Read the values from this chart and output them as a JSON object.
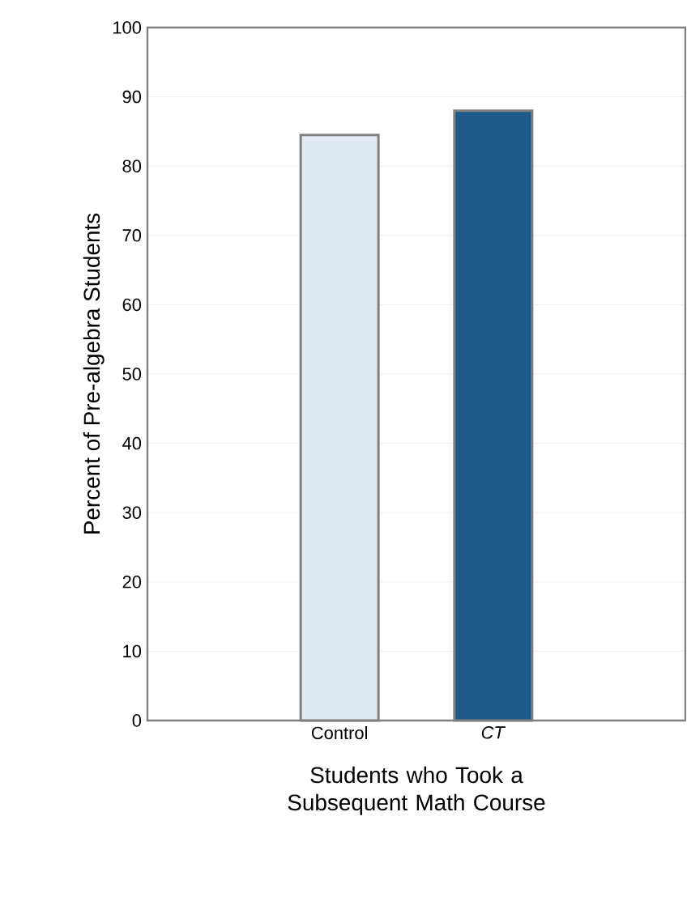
{
  "chart_data": {
    "type": "bar",
    "xlabel": "Students who Took a Subsequent Math Course",
    "ylabel": "Percent of Pre-algebra Students",
    "categories": [
      "Control",
      "*CT*"
    ],
    "values": [
      84.5,
      88
    ],
    "colors": [
      "#e1e9f2",
      "#1f5a8a"
    ],
    "ylim": [
      0,
      100
    ],
    "yticks": [
      0,
      10,
      20,
      30,
      40,
      50,
      60,
      70,
      80,
      90,
      100
    ],
    "grid": "y"
  }
}
